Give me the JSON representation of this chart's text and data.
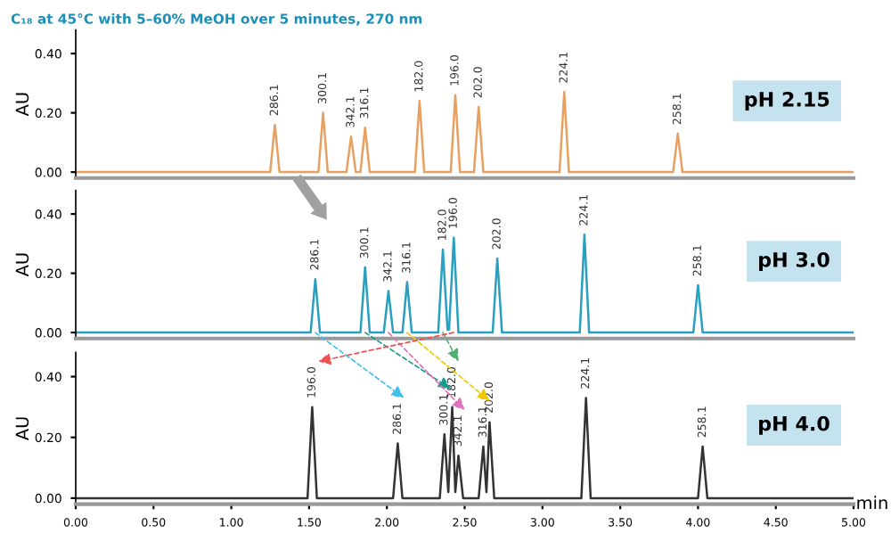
{
  "chart_data": [
    {
      "type": "line",
      "title": "C₁₈ at 45°C with 5–60% MeOH over 5 minutes, 270 nm",
      "ylabel": "AU",
      "xlim": [
        0,
        5
      ],
      "ylim": [
        -0.02,
        0.48
      ],
      "yticks": [
        {
          "value": 0,
          "label": "0.00"
        },
        {
          "value": 0.2,
          "label": "0.20"
        },
        {
          "value": 0.4,
          "label": "0.40"
        }
      ],
      "tick_labels": "y",
      "grid": false,
      "legend": false,
      "series": [
        {
          "color": "#e8a060",
          "x": [
            0,
            1.25,
            1.28,
            1.31,
            1.56,
            1.59,
            1.62,
            1.74,
            1.77,
            1.8,
            1.83,
            1.86,
            1.89,
            2.18,
            2.21,
            2.24,
            2.41,
            2.44,
            2.47,
            2.56,
            2.59,
            2.62,
            3.11,
            3.14,
            3.17,
            3.84,
            3.87,
            3.9,
            5
          ],
          "values": [
            0,
            0,
            0.16,
            0,
            0,
            0.2,
            0,
            0,
            0.12,
            0,
            0,
            0.15,
            0,
            0,
            0.24,
            0,
            0,
            0.26,
            0,
            0,
            0.22,
            0,
            0,
            0.27,
            0,
            0,
            0.13,
            0,
            0
          ]
        }
      ],
      "annotations": [
        {
          "text": "286.1",
          "x": 1.28,
          "y": 0.16
        },
        {
          "text": "300.1",
          "x": 1.59,
          "y": 0.2
        },
        {
          "text": "342.1",
          "x": 1.77,
          "y": 0.12
        },
        {
          "text": "316.1",
          "x": 1.86,
          "y": 0.15
        },
        {
          "text": "182.0",
          "x": 2.21,
          "y": 0.24
        },
        {
          "text": "196.0",
          "x": 2.44,
          "y": 0.26
        },
        {
          "text": "202.0",
          "x": 2.59,
          "y": 0.22
        },
        {
          "text": "224.1",
          "x": 3.14,
          "y": 0.27
        },
        {
          "text": "258.1",
          "x": 3.87,
          "y": 0.13
        },
        "pH 2.15"
      ]
    },
    {
      "type": "line",
      "ylabel": "AU",
      "xlim": [
        0,
        5
      ],
      "ylim": [
        -0.02,
        0.48
      ],
      "yticks": [
        {
          "value": 0,
          "label": "0.00"
        },
        {
          "value": 0.2,
          "label": "0.20"
        },
        {
          "value": 0.4,
          "label": "0.40"
        }
      ],
      "tick_labels": "y",
      "grid": false,
      "legend": false,
      "series": [
        {
          "color": "#2a9fc0",
          "x": [
            0,
            1.51,
            1.54,
            1.57,
            1.83,
            1.86,
            1.89,
            1.98,
            2.01,
            2.04,
            2.1,
            2.13,
            2.16,
            2.33,
            2.36,
            2.39,
            2.4,
            2.43,
            2.46,
            2.68,
            2.71,
            2.74,
            3.24,
            3.27,
            3.3,
            3.97,
            4.0,
            4.03,
            5
          ],
          "values": [
            0,
            0,
            0.18,
            0,
            0,
            0.22,
            0,
            0,
            0.14,
            0,
            0,
            0.17,
            0,
            0,
            0.28,
            0.01,
            0.01,
            0.32,
            0,
            0,
            0.25,
            0,
            0,
            0.33,
            0,
            0,
            0.16,
            0,
            0
          ]
        }
      ],
      "annotations": [
        {
          "text": "286.1",
          "x": 1.54,
          "y": 0.18
        },
        {
          "text": "300.1",
          "x": 1.86,
          "y": 0.22
        },
        {
          "text": "342.1",
          "x": 2.01,
          "y": 0.14
        },
        {
          "text": "316.1",
          "x": 2.13,
          "y": 0.17
        },
        {
          "text": "182.0",
          "x": 2.36,
          "y": 0.28
        },
        {
          "text": "196.0",
          "x": 2.43,
          "y": 0.32
        },
        {
          "text": "202.0",
          "x": 2.71,
          "y": 0.25
        },
        {
          "text": "224.1",
          "x": 3.27,
          "y": 0.33
        },
        {
          "text": "258.1",
          "x": 4.0,
          "y": 0.16
        },
        "pH 3.0"
      ]
    },
    {
      "type": "line",
      "ylabel": "AU",
      "xlabel": "min",
      "xlim": [
        0,
        5
      ],
      "ylim": [
        -0.02,
        0.48
      ],
      "xticks": [
        {
          "value": 0,
          "label": "0.00"
        },
        {
          "value": 0.5,
          "label": "0.50"
        },
        {
          "value": 1,
          "label": "1.00"
        },
        {
          "value": 1.5,
          "label": "1.50"
        },
        {
          "value": 2,
          "label": "2.00"
        },
        {
          "value": 2.5,
          "label": "2.50"
        },
        {
          "value": 3,
          "label": "3.00"
        },
        {
          "value": 3.5,
          "label": "3.50"
        },
        {
          "value": 4,
          "label": "4.00"
        },
        {
          "value": 4.5,
          "label": "4.50"
        },
        {
          "value": 5,
          "label": "5.00"
        }
      ],
      "yticks": [
        {
          "value": 0,
          "label": "0.00"
        },
        {
          "value": 0.2,
          "label": "0.20"
        },
        {
          "value": 0.4,
          "label": "0.40"
        }
      ],
      "grid": false,
      "legend": false,
      "series": [
        {
          "color": "#333333",
          "x": [
            0,
            1.49,
            1.52,
            1.55,
            2.04,
            2.07,
            2.1,
            2.34,
            2.37,
            2.395,
            2.42,
            2.44,
            2.46,
            2.49,
            2.59,
            2.62,
            2.64,
            2.66,
            2.69,
            3.25,
            3.28,
            3.31,
            4.0,
            4.03,
            4.06,
            5
          ],
          "values": [
            0,
            0,
            0.3,
            0,
            0,
            0.18,
            0,
            0,
            0.21,
            0.02,
            0.3,
            0.02,
            0.14,
            0,
            0,
            0.17,
            0.02,
            0.25,
            0,
            0,
            0.33,
            0,
            0,
            0.17,
            0,
            0
          ]
        }
      ],
      "annotations": [
        {
          "text": "196.0",
          "x": 1.52,
          "y": 0.3
        },
        {
          "text": "286.1",
          "x": 2.07,
          "y": 0.18
        },
        {
          "text": "300.1",
          "x": 2.37,
          "y": 0.21
        },
        {
          "text": "182.0",
          "x": 2.42,
          "y": 0.3
        },
        {
          "text": "342.1",
          "x": 2.46,
          "y": 0.14
        },
        {
          "text": "316.1",
          "x": 2.62,
          "y": 0.17
        },
        {
          "text": "202.0",
          "x": 2.66,
          "y": 0.25
        },
        {
          "text": "224.1",
          "x": 3.28,
          "y": 0.33
        },
        {
          "text": "258.1",
          "x": 4.03,
          "y": 0.17
        },
        "pH 4.0"
      ]
    }
  ]
}
